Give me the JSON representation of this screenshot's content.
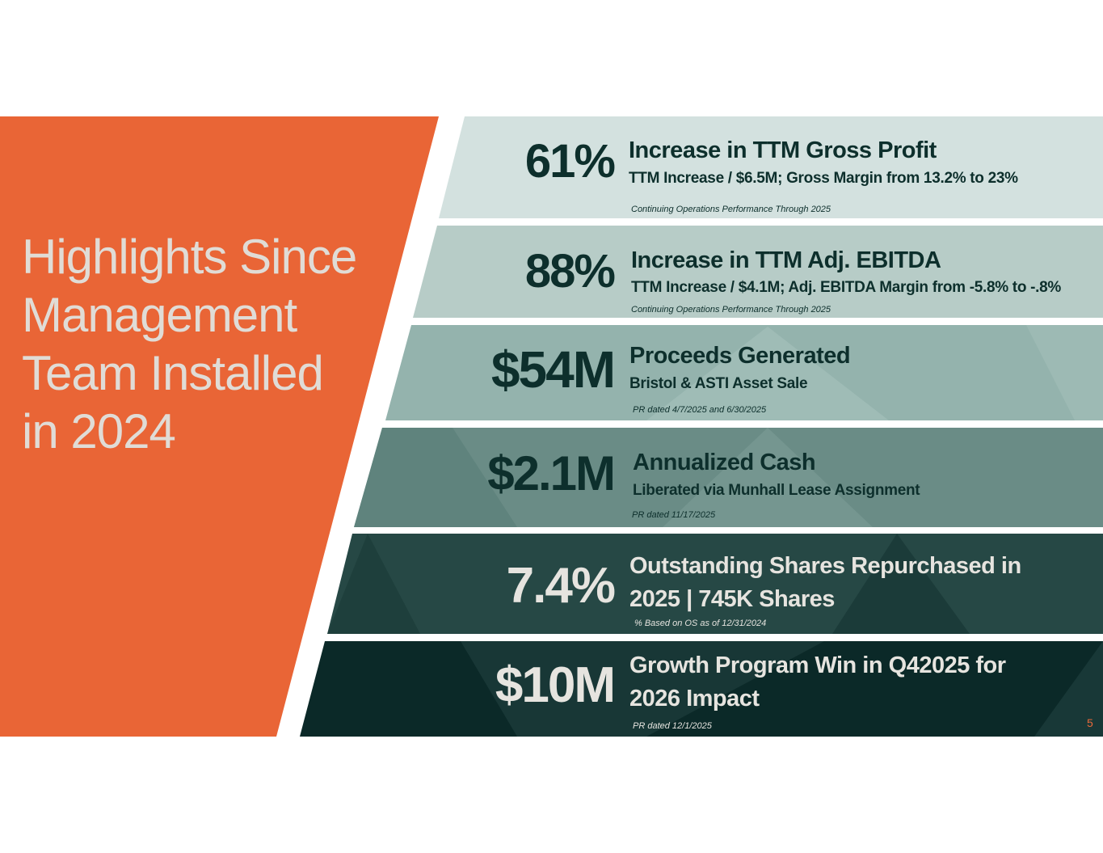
{
  "slide": {
    "title_lines": [
      "Highlights Since",
      "Management",
      "Team Installed",
      "in 2024"
    ],
    "page_number": "5",
    "colors": {
      "accent_orange": "#e96536",
      "band1": "#d3e1df",
      "band2": "#b7ccc7",
      "band3": "#94b3ad",
      "band4": "#6a8c86",
      "band5": "#264845",
      "band6": "#0b2928"
    }
  },
  "highlights": [
    {
      "metric": "61%",
      "headline": "Increase in TTM Gross Profit",
      "detail": "TTM Increase / $6.5M; Gross Margin from  13.2% to 23%",
      "note": "Continuing Operations Performance  Through 2025"
    },
    {
      "metric": "88%",
      "headline": "Increase in TTM Adj. EBITDA",
      "detail": "TTM Increase / $4.1M;  Adj. EBITDA Margin from -5.8% to -.8%",
      "note": "Continuing Operations Performance  Through  2025"
    },
    {
      "metric": "$54M",
      "headline": "Proceeds Generated",
      "detail": "Bristol & ASTI Asset Sale",
      "note": "PR dated  4/7/2025 and 6/30/2025"
    },
    {
      "metric": "$2.1M",
      "headline": "Annualized Cash",
      "detail": "Liberated via Munhall Lease Assignment",
      "note": "PR dated 11/17/2025"
    },
    {
      "metric": "7.4%",
      "headline_line1": "Outstanding Shares Repurchased in",
      "headline_line2": "2025 | 745K Shares",
      "note": "% Based on OS as of 12/31/2024"
    },
    {
      "metric": "$10M",
      "headline_line1": "Growth Program Win in Q42025 for",
      "headline_line2": "2026 Impact",
      "note": "PR dated 12/1/2025"
    }
  ]
}
